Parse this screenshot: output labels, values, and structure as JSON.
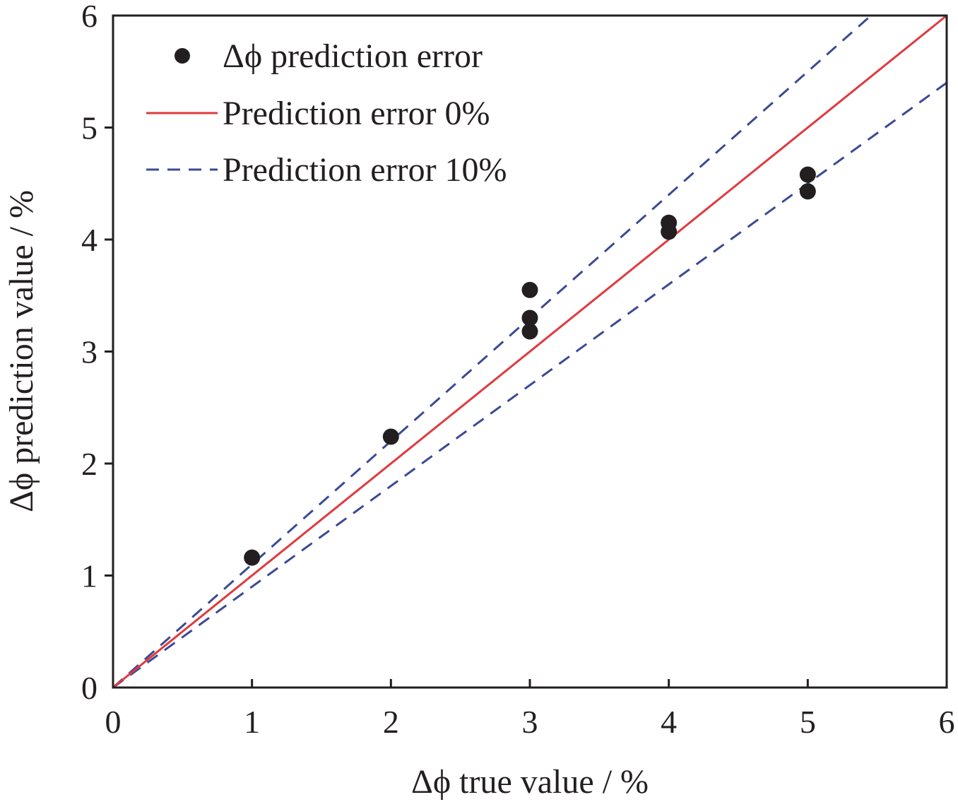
{
  "chart_data": {
    "type": "scatter",
    "title": "",
    "xlabel": "Δϕ true value / %",
    "ylabel": "Δϕ prediction value / %",
    "xlim": [
      0,
      6
    ],
    "ylim": [
      0,
      6
    ],
    "xticks": [
      "0",
      "1",
      "2",
      "3",
      "4",
      "5",
      "6"
    ],
    "yticks": [
      "0",
      "1",
      "2",
      "3",
      "4",
      "5",
      "6"
    ],
    "grid": false,
    "legend_position": "top-left",
    "series": [
      {
        "name": "Δϕ prediction error",
        "kind": "scatter",
        "color": "#231f20",
        "x": [
          1,
          2,
          3,
          3,
          3,
          4,
          4,
          5,
          5
        ],
        "y": [
          1.16,
          2.24,
          3.55,
          3.3,
          3.18,
          4.15,
          4.07,
          4.58,
          4.43
        ]
      },
      {
        "name": "Prediction error 0%",
        "kind": "line",
        "color": "#e03a3e",
        "slope": 1.0
      },
      {
        "name": "Prediction error 10%",
        "kind": "dashed",
        "color": "#3b4a94",
        "slopes": [
          1.1,
          0.9
        ]
      }
    ]
  }
}
